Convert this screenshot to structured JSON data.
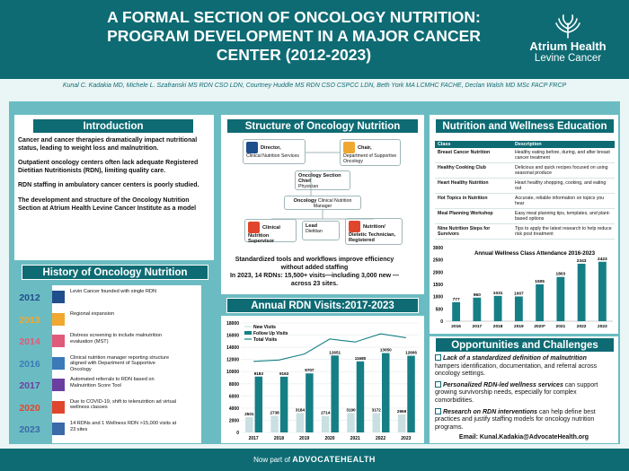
{
  "header": {
    "title": "A FORMAL SECTION OF ONCOLOGY NUTRITION: PROGRAM DEVELOPMENT IN A MAJOR CANCER CENTER (2012-2023)",
    "logo_name": "Atrium Health",
    "logo_sub": "Levine Cancer",
    "authors": "Kunal C. Kadakia MD, Michele L. Szafranski MS RDN CSO LDN, Courtney Huddle MS RDN CSO CSPCC LDN,  Beth York MA LCMHC FACHE, Declan Walsh MD MSc FACP FRCP"
  },
  "intro": {
    "heading": "Introduction",
    "paragraphs": [
      "Cancer and cancer therapies dramatically impact nutritional status, leading to weight loss and malnutrition.",
      "Outpatient oncology centers often lack adequate Registered Dietitian Nutritionists (RDN), limiting quality care.",
      "RDN staffing in ambulatory cancer centers is poorly studied.",
      "The development and structure of the Oncology Nutrition Section at Atrium Health Levine Cancer Institute as a model"
    ]
  },
  "history": {
    "heading": "History of Oncology Nutrition",
    "items": [
      {
        "year": "2012",
        "text": "Levin Cancer founded with single RDN",
        "color": "#1f4e8c"
      },
      {
        "year": "2013",
        "text": "Regional expansion",
        "color": "#f0a830"
      },
      {
        "year": "2014",
        "text": "Distress screening to include malnutrition evaluation (MST)",
        "color": "#e05a7a"
      },
      {
        "year": "2016",
        "text": "Clinical nutrition manager reporting structure aligned with Department of Supportive Oncology",
        "color": "#3a7ab8"
      },
      {
        "year": "2017",
        "text": "Automated referrals to RDN based on Malnutrition Score Tool",
        "color": "#6a3fa0"
      },
      {
        "year": "2020",
        "text": "Due to COVID-19, shift to telenutrition ad virtual wellness classes",
        "color": "#e0462e"
      },
      {
        "year": "2023",
        "text": "14 RDNs and 1 Wellness RDN >15,000 visits at 23 sites",
        "color": "#3a6aa8"
      }
    ]
  },
  "structure": {
    "heading": "Structure of Oncology Nutrition",
    "boxes": {
      "director_title": "Director,",
      "director_sub": "Clinical Nutrition Services",
      "chair_title": "Chair,",
      "chair_sub": "Department of Supportive Oncology",
      "chief_title": "Oncology Section Chief",
      "chief_sub": "Physician",
      "manager_title": "Oncology",
      "manager_sub": "Clinical Nutrition Manager",
      "supervisor_title": "Clinical Nutrition Supervisor",
      "lead_title": "Lead",
      "lead_sub": "Dietitian",
      "tech_title": "Nutrition/ Dietetic Technician, Registered"
    },
    "caption_1": "Standardized tools and workflows improve efficiency without added staffing",
    "caption_2": "In 2023, 14 RDNs: 15,500+ visits—including 3,000 new —across 23 sites."
  },
  "visits": {
    "heading": "Annual RDN Visits:2017-2023"
  },
  "wellness": {
    "heading": "Nutrition and Wellness Education",
    "col_class": "Class",
    "col_desc": "Description",
    "rows": [
      {
        "cls": "Breast Cancer Nutrition",
        "desc": "Healthy eating before, during, and after breast cancer treatment"
      },
      {
        "cls": "Healthy Cooking Club",
        "desc": "Delicious and quick recipes focused on using seasonal produce"
      },
      {
        "cls": "Heart Healthy Nutrition",
        "desc": "Heart healthy shopping, cooking, and eating out"
      },
      {
        "cls": "Hot Topics in Nutrition",
        "desc": "Accurate, reliable information on topics you hear"
      },
      {
        "cls": "Meal Planning Workshop",
        "desc": "Easy meal planning tips, templates, and plant-based options"
      },
      {
        "cls": "Nine Nutrition Steps for Survivors",
        "desc": "Tips to apply the latest research to help reduce risk post treatment"
      }
    ]
  },
  "opportunities": {
    "heading": "Opportunities and Challenges",
    "items": [
      {
        "strong": "Lack of a standardized definition of malnutrition",
        "rest": " hampers identification, documentation, and referral across oncology settings."
      },
      {
        "strong": "Personalized RDN-led wellness services",
        "rest": " can support growing survivorship needs, especially for complex comorbidities."
      },
      {
        "strong": "Research on RDN interventions",
        "rest": " can help define best practices and justify staffing models for oncology nutrition programs."
      }
    ],
    "email": "Email: Kunal.Kadakia@AdvocateHealth.org"
  },
  "footer": {
    "prefix": "Now part of",
    "brand": "ADVOCATEHEALTH"
  },
  "chart_data": [
    {
      "type": "bar",
      "title": "Annual RDN Visits:2017-2023",
      "categories": [
        "2017",
        "2018",
        "2019",
        "2020",
        "2021",
        "2022",
        "2023"
      ],
      "series": [
        {
          "name": "New Visits",
          "values": [
            2501,
            2738,
            3184,
            2714,
            3190,
            3172,
            2969
          ]
        },
        {
          "name": "Follow Up Visits",
          "values": [
            9183,
            9163,
            9707,
            12651,
            11680,
            13050,
            12606
          ]
        },
        {
          "name": "Total Visits",
          "values": [
            11684,
            11901,
            12891,
            15365,
            14870,
            16222,
            15575
          ]
        }
      ],
      "ylim": [
        0,
        18000
      ],
      "yticks": [
        0,
        2000,
        4000,
        6000,
        8000,
        10000,
        12000,
        14000,
        16000,
        18000
      ],
      "colors": {
        "New Visits": "#c9dfe1",
        "Follow Up Visits": "#167f86",
        "Total Visits": "#167f86"
      },
      "legend": "top-left"
    },
    {
      "type": "bar",
      "title": "Annual Wellness Class Attendance 2016-2023",
      "categories": [
        "2016",
        "2017",
        "2018",
        "2019",
        "2020*",
        "2021",
        "2022",
        "2023"
      ],
      "values": [
        777,
        960,
        1031,
        1007,
        1505,
        1803,
        2343,
        2423
      ],
      "ylim": [
        0,
        3000
      ],
      "yticks": [
        0,
        500,
        1000,
        1500,
        2000,
        2500,
        3000
      ],
      "color": "#167f86"
    }
  ]
}
